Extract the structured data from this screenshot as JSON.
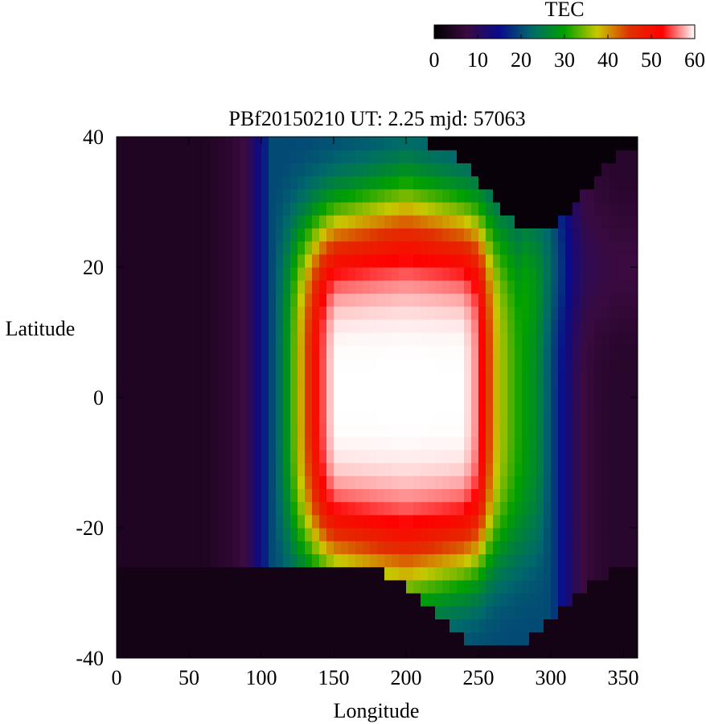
{
  "chart_data": {
    "type": "heatmap",
    "title": "PBf20150210  UT: 2.25  mjd: 57063",
    "xlabel": "Longitude",
    "ylabel": "Latitude",
    "xlim": [
      0,
      360
    ],
    "ylim": [
      -40,
      40
    ],
    "x_ticks": [
      0,
      50,
      100,
      150,
      200,
      250,
      300,
      350
    ],
    "y_ticks": [
      -40,
      -20,
      0,
      20,
      40
    ],
    "colorbar": {
      "label": "TEC",
      "range": [
        0,
        60
      ],
      "ticks": [
        0,
        10,
        20,
        30,
        40,
        50,
        60
      ],
      "palette": [
        "#000000",
        "#3a0a40",
        "#0a0a8c",
        "#006a6a",
        "#00a000",
        "#c8c800",
        "#e03000",
        "#ff0000",
        "#ffffff"
      ]
    },
    "grid": false,
    "longitude_profile": {
      "lon": [
        0,
        60,
        80,
        90,
        100,
        115,
        130,
        140,
        150,
        160,
        175,
        190,
        200,
        215,
        230,
        240,
        250,
        260,
        270,
        280,
        290,
        300,
        310,
        320,
        330,
        345,
        360
      ],
      "tec": [
        4,
        4,
        6,
        8,
        15,
        25,
        42,
        53,
        60,
        60,
        60,
        60,
        60,
        60,
        60,
        60,
        56,
        40,
        34,
        30,
        27,
        20,
        14,
        8,
        6,
        5,
        5
      ]
    },
    "crest_region": {
      "center_lon": 192,
      "center_lat": 1,
      "peak_tec": 60
    }
  }
}
